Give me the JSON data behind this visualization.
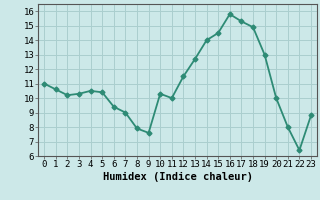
{
  "x": [
    0,
    1,
    2,
    3,
    4,
    5,
    6,
    7,
    8,
    9,
    10,
    11,
    12,
    13,
    14,
    15,
    16,
    17,
    18,
    19,
    20,
    21,
    22,
    23
  ],
  "y": [
    11.0,
    10.6,
    10.2,
    10.3,
    10.5,
    10.4,
    9.4,
    9.0,
    7.9,
    7.6,
    10.3,
    10.0,
    11.5,
    12.7,
    14.0,
    14.5,
    15.8,
    15.3,
    14.9,
    13.0,
    10.0,
    8.0,
    6.4,
    8.8
  ],
  "line_color": "#2e8b75",
  "marker": "D",
  "marker_size": 2.5,
  "bg_color": "#cce8e8",
  "grid_color": "#aacece",
  "xlabel": "Humidex (Indice chaleur)",
  "xlim": [
    -0.5,
    23.5
  ],
  "ylim": [
    6,
    16.5
  ],
  "yticks": [
    6,
    7,
    8,
    9,
    10,
    11,
    12,
    13,
    14,
    15,
    16
  ],
  "xticks": [
    0,
    1,
    2,
    3,
    4,
    5,
    6,
    7,
    8,
    9,
    10,
    11,
    12,
    13,
    14,
    15,
    16,
    17,
    18,
    19,
    20,
    21,
    22,
    23
  ],
  "tick_fontsize": 6.5,
  "xlabel_fontsize": 7.5,
  "line_width": 1.3
}
